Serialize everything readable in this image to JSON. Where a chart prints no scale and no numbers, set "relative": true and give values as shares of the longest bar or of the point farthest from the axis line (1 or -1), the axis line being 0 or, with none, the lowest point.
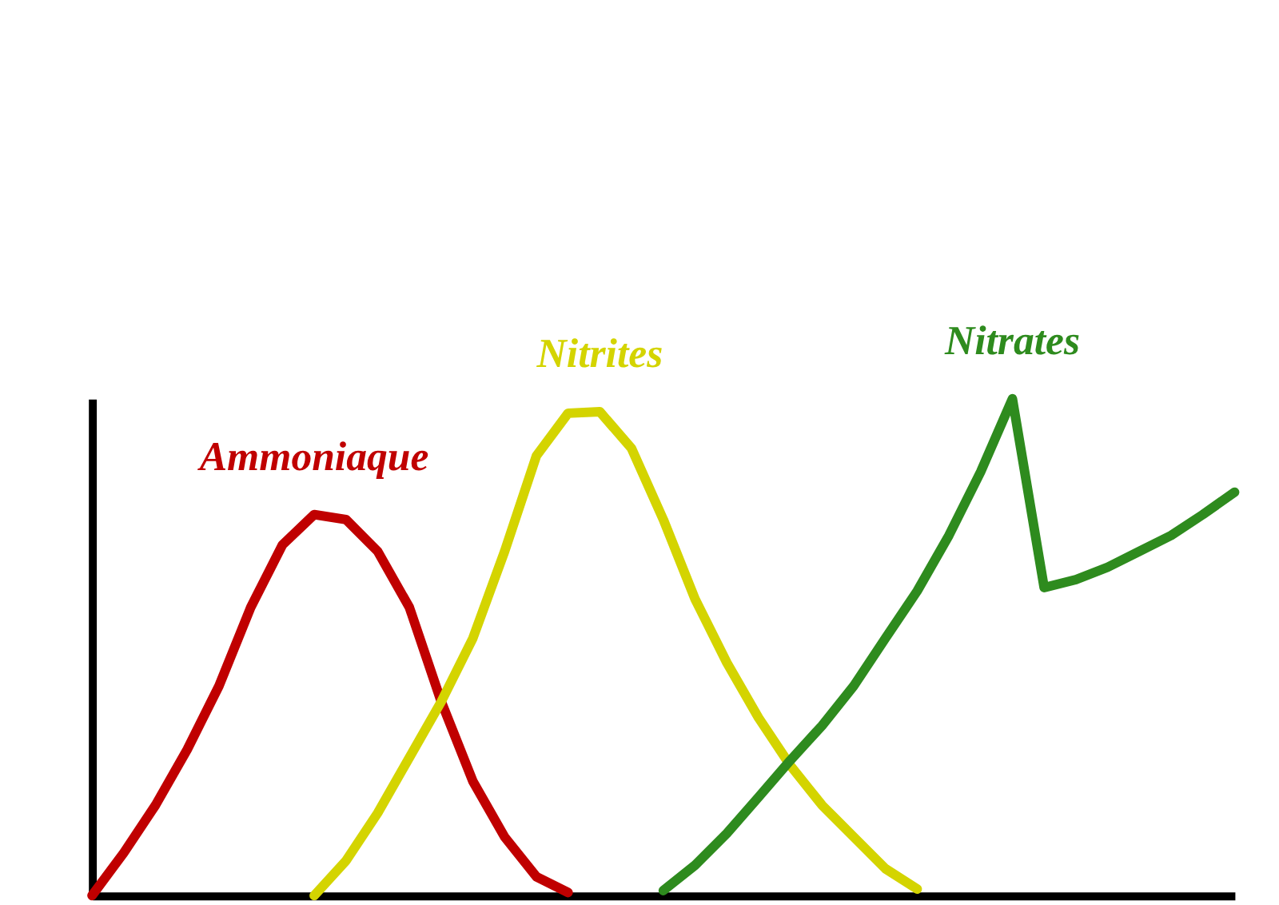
{
  "chart_data": {
    "type": "line",
    "relative": true,
    "categories": [
      null,
      null,
      null,
      null,
      null,
      null,
      null,
      null,
      null,
      null,
      null,
      null,
      null,
      null,
      null,
      null,
      null,
      null,
      null,
      null,
      null,
      null,
      null,
      null,
      null,
      null,
      null,
      null,
      null,
      null,
      null,
      null,
      null,
      null,
      null,
      null,
      null
    ],
    "series": [
      {
        "name": "Ammoniaque",
        "color": "#c00000",
        "values": [
          0,
          0.086,
          0.182,
          0.294,
          0.422,
          0.58,
          0.706,
          0.767,
          0.757,
          0.693,
          0.58,
          0.391,
          0.23,
          0.118,
          0.038,
          0.006,
          null,
          null,
          null,
          null,
          null,
          null,
          null,
          null,
          null,
          null,
          null,
          null,
          null,
          null,
          null,
          null,
          null,
          null,
          null,
          null,
          null
        ]
      },
      {
        "name": "Nitrites",
        "color": "#d4d400",
        "values": [
          null,
          null,
          null,
          null,
          null,
          null,
          null,
          0,
          0.07,
          0.166,
          0.278,
          0.39,
          0.518,
          0.693,
          0.885,
          0.971,
          0.974,
          0.9,
          0.757,
          0.597,
          0.469,
          0.358,
          0.262,
          0.182,
          0.118,
          0.054,
          0.013,
          null,
          null,
          null,
          null,
          null,
          null,
          null,
          null,
          null,
          null
        ]
      },
      {
        "name": "Nitrates",
        "color": "#2e8b1e",
        "values": [
          null,
          null,
          null,
          null,
          null,
          null,
          null,
          null,
          null,
          null,
          null,
          null,
          null,
          null,
          null,
          null,
          null,
          null,
          0.01,
          0.061,
          0.125,
          0.198,
          0.272,
          0.342,
          0.422,
          0.518,
          0.613,
          0.725,
          0.853,
          1,
          0.62,
          0.636,
          0.661,
          0.693,
          0.725,
          0.767,
          0.812
        ]
      }
    ],
    "line_style": "solid",
    "marker": "none",
    "grid": false,
    "legend": false,
    "tick_labels": false
  }
}
